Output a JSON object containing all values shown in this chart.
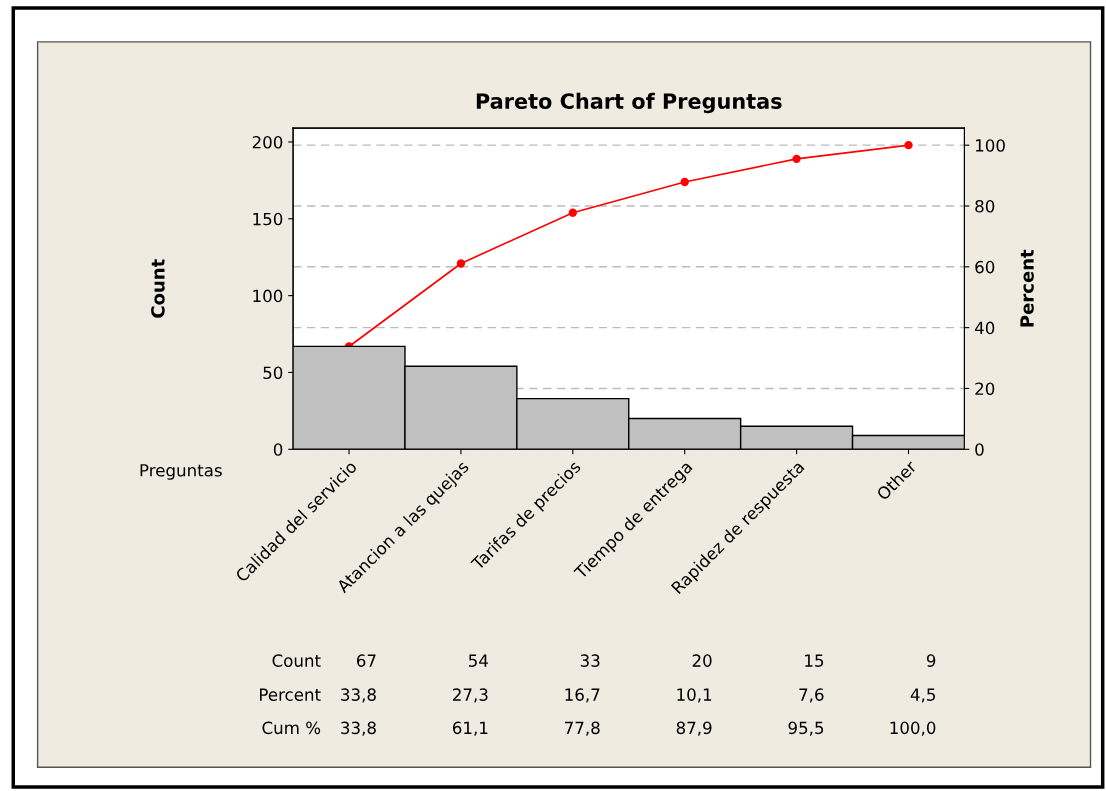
{
  "chart_data": {
    "type": "bar",
    "title": "Pareto Chart of Preguntas",
    "xlabel": "Preguntas",
    "ylabel": "Count",
    "y2label": "Percent",
    "categories": [
      "Calidad del servicio",
      "Atancion a las quejas",
      "Tarifas de precios",
      "Tiempo de entrega",
      "Rapidez de respuesta",
      "Other"
    ],
    "series": [
      {
        "color": "#c0c0c0",
        "values": [
          67,
          54,
          33,
          20,
          15,
          9
        ],
        "value_labels": [
          "67",
          "54",
          "33",
          "20",
          "15",
          "9"
        ]
      },
      {
        "type": "line",
        "axis": "y2",
        "color": "#ff0000",
        "marker": "circle",
        "values": [
          33.8,
          61.1,
          77.8,
          87.9,
          95.5,
          100.0
        ],
        "value_labels": [
          "33,8",
          "61,1",
          "77,8",
          "87,9",
          "95,5",
          "100,0"
        ]
      }
    ],
    "annotations": [
      "Count",
      "Percent",
      "Cum %",
      "33,8",
      "27,3",
      "16,7",
      "10,1",
      "7,6",
      "4,5"
    ],
    "ylim": [
      0,
      209
    ],
    "yticks": [
      0,
      50,
      100,
      150,
      200
    ],
    "y2lim": [
      0,
      105.6
    ],
    "y2ticks": [
      0,
      20,
      40,
      60,
      80,
      100
    ],
    "grid": "y2",
    "legend": false
  }
}
